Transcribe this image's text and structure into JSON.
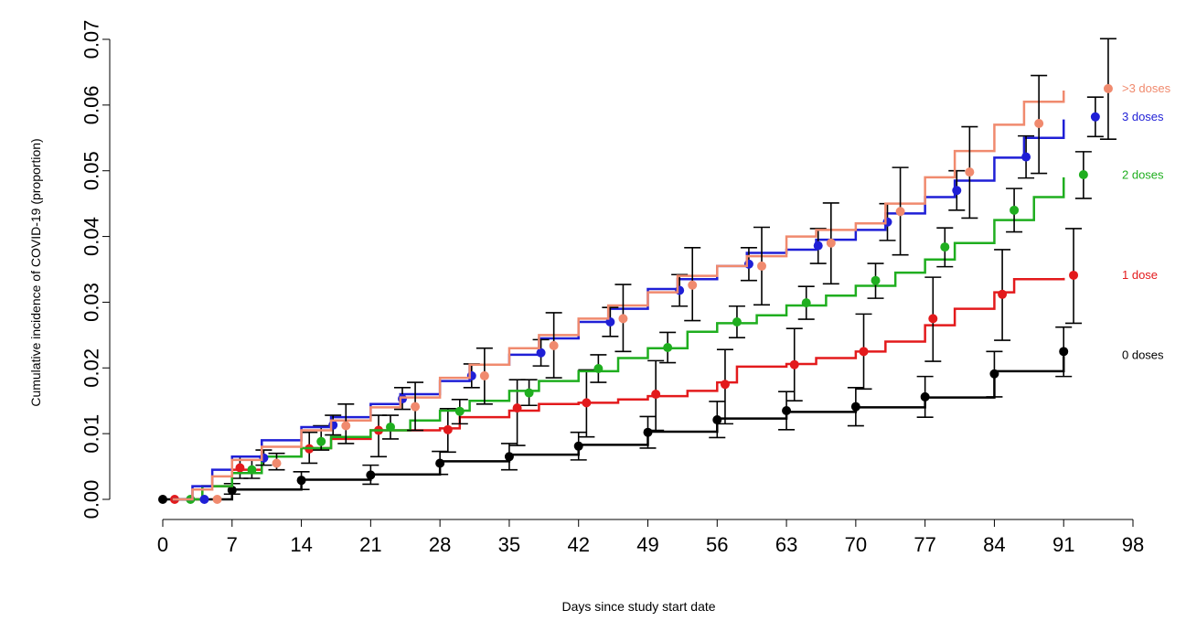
{
  "chart_data": {
    "type": "line",
    "title": "",
    "xlabel": "Days since study start date",
    "ylabel": "Cumulative incidence of COVID-19 (proportion)",
    "xlim": [
      0,
      98
    ],
    "ylim": [
      0,
      0.07
    ],
    "x_ticks": [
      0,
      7,
      14,
      21,
      28,
      35,
      42,
      49,
      56,
      63,
      70,
      77,
      84,
      91,
      98
    ],
    "x_tick_labels": [
      "0",
      "7",
      "14",
      "21",
      "28",
      "35",
      "42",
      "49",
      "56",
      "63",
      "70",
      "77",
      "84",
      "91",
      "98"
    ],
    "y_ticks": [
      0,
      0.01,
      0.02,
      0.03,
      0.04,
      0.05,
      0.06,
      0.07
    ],
    "y_tick_labels": [
      "0.00",
      "0.01",
      "0.02",
      "0.03",
      "0.04",
      "0.05",
      "0.06",
      "0.07"
    ],
    "grid": false,
    "series": [
      {
        "name": "0 doses",
        "color": "#000000",
        "curve_x": [
          0,
          7,
          14,
          21,
          28,
          35,
          42,
          49,
          56,
          63,
          70,
          72,
          77,
          84,
          91
        ],
        "curve_y": [
          0,
          0.0015,
          0.003,
          0.0038,
          0.0058,
          0.0068,
          0.0083,
          0.0103,
          0.0123,
          0.0133,
          0.014,
          0.014,
          0.0155,
          0.0195,
          0.0218
        ],
        "points": [
          {
            "x": 0,
            "y": 0,
            "lo": null,
            "hi": null
          },
          {
            "x": 7,
            "y": 0.0014,
            "lo": 0.0008,
            "hi": 0.0024
          },
          {
            "x": 14,
            "y": 0.0029,
            "lo": 0.0015,
            "hi": 0.0042
          },
          {
            "x": 21,
            "y": 0.0037,
            "lo": 0.0023,
            "hi": 0.0052
          },
          {
            "x": 28,
            "y": 0.0055,
            "lo": 0.0038,
            "hi": 0.0073
          },
          {
            "x": 35,
            "y": 0.0065,
            "lo": 0.0045,
            "hi": 0.0085
          },
          {
            "x": 42,
            "y": 0.0081,
            "lo": 0.006,
            "hi": 0.0102
          },
          {
            "x": 49,
            "y": 0.0102,
            "lo": 0.0078,
            "hi": 0.0126
          },
          {
            "x": 56,
            "y": 0.0121,
            "lo": 0.0094,
            "hi": 0.0149
          },
          {
            "x": 63,
            "y": 0.0135,
            "lo": 0.0106,
            "hi": 0.0164
          },
          {
            "x": 70,
            "y": 0.0141,
            "lo": 0.0112,
            "hi": 0.017
          },
          {
            "x": 77,
            "y": 0.0156,
            "lo": 0.0125,
            "hi": 0.0187
          },
          {
            "x": 84,
            "y": 0.0191,
            "lo": 0.0156,
            "hi": 0.0225
          },
          {
            "x": 91,
            "y": 0.0225,
            "lo": 0.0187,
            "hi": 0.0262
          }
        ]
      },
      {
        "name": "1 dose",
        "color": "#e31a1c",
        "curve_x": [
          1,
          4,
          7,
          10,
          14,
          17,
          21,
          25,
          28,
          30,
          35,
          38,
          42,
          46,
          49,
          53,
          56,
          58,
          63,
          66,
          70,
          73,
          77,
          80,
          84,
          86,
          91
        ],
        "curve_y": [
          0,
          0.002,
          0.0045,
          0.0065,
          0.0078,
          0.0092,
          0.0105,
          0.0105,
          0.0108,
          0.0125,
          0.0135,
          0.0145,
          0.0147,
          0.0152,
          0.0157,
          0.0165,
          0.0178,
          0.0202,
          0.0206,
          0.0215,
          0.0225,
          0.024,
          0.0265,
          0.029,
          0.0315,
          0.0335,
          0.0337
        ],
        "points": [
          {
            "x": 1.2,
            "y": 0,
            "lo": null,
            "hi": null
          },
          {
            "x": 7.8,
            "y": 0.0048,
            "lo": 0.0032,
            "hi": 0.0065
          },
          {
            "x": 14.8,
            "y": 0.0077,
            "lo": 0.0055,
            "hi": 0.0102
          },
          {
            "x": 21.8,
            "y": 0.0105,
            "lo": 0.0065,
            "hi": 0.0128
          },
          {
            "x": 28.8,
            "y": 0.0106,
            "lo": 0.0072,
            "hi": 0.0138
          },
          {
            "x": 35.8,
            "y": 0.0139,
            "lo": 0.0082,
            "hi": 0.0182
          },
          {
            "x": 42.8,
            "y": 0.0147,
            "lo": 0.0095,
            "hi": 0.0197
          },
          {
            "x": 49.8,
            "y": 0.016,
            "lo": 0.0105,
            "hi": 0.0211
          },
          {
            "x": 56.8,
            "y": 0.0175,
            "lo": 0.0115,
            "hi": 0.0228
          },
          {
            "x": 63.8,
            "y": 0.0205,
            "lo": 0.015,
            "hi": 0.026
          },
          {
            "x": 70.8,
            "y": 0.0225,
            "lo": 0.0168,
            "hi": 0.0282
          },
          {
            "x": 77.8,
            "y": 0.0275,
            "lo": 0.021,
            "hi": 0.0338
          },
          {
            "x": 84.8,
            "y": 0.0312,
            "lo": 0.0242,
            "hi": 0.038
          },
          {
            "x": 92,
            "y": 0.0341,
            "lo": 0.0268,
            "hi": 0.0412
          }
        ]
      },
      {
        "name": "2 doses",
        "color": "#1fae1f",
        "curve_x": [
          1,
          4,
          7,
          10,
          14,
          17,
          21,
          25,
          28,
          31,
          35,
          38,
          42,
          46,
          49,
          53,
          56,
          60,
          63,
          67,
          70,
          74,
          77,
          80,
          84,
          88,
          91
        ],
        "curve_y": [
          0,
          0.002,
          0.004,
          0.0065,
          0.0078,
          0.0095,
          0.0105,
          0.012,
          0.0135,
          0.015,
          0.0165,
          0.018,
          0.0195,
          0.0215,
          0.023,
          0.0255,
          0.0268,
          0.028,
          0.0295,
          0.031,
          0.0325,
          0.0345,
          0.0365,
          0.039,
          0.0425,
          0.046,
          0.049
        ],
        "points": [
          {
            "x": 2.8,
            "y": 0,
            "lo": null,
            "hi": null
          },
          {
            "x": 9,
            "y": 0.0045,
            "lo": 0.0032,
            "hi": 0.006
          },
          {
            "x": 16,
            "y": 0.0088,
            "lo": 0.0075,
            "hi": 0.0112
          },
          {
            "x": 23,
            "y": 0.011,
            "lo": 0.0092,
            "hi": 0.0128
          },
          {
            "x": 30,
            "y": 0.0134,
            "lo": 0.0115,
            "hi": 0.0152
          },
          {
            "x": 37,
            "y": 0.0162,
            "lo": 0.0143,
            "hi": 0.0182
          },
          {
            "x": 44,
            "y": 0.0199,
            "lo": 0.0178,
            "hi": 0.022
          },
          {
            "x": 51,
            "y": 0.0231,
            "lo": 0.0208,
            "hi": 0.0254
          },
          {
            "x": 58,
            "y": 0.027,
            "lo": 0.0246,
            "hi": 0.0294
          },
          {
            "x": 65,
            "y": 0.0299,
            "lo": 0.0274,
            "hi": 0.0324
          },
          {
            "x": 72,
            "y": 0.0333,
            "lo": 0.0306,
            "hi": 0.0359
          },
          {
            "x": 79,
            "y": 0.0384,
            "lo": 0.0354,
            "hi": 0.0413
          },
          {
            "x": 86,
            "y": 0.044,
            "lo": 0.0407,
            "hi": 0.0473
          },
          {
            "x": 93,
            "y": 0.0494,
            "lo": 0.0458,
            "hi": 0.0529
          }
        ]
      },
      {
        "name": "3 doses",
        "color": "#1f1fd6",
        "curve_x": [
          1,
          3,
          5,
          7,
          10,
          14,
          17,
          21,
          24,
          28,
          31,
          35,
          38,
          42,
          45,
          49,
          52,
          56,
          59,
          63,
          66,
          70,
          73,
          77,
          80,
          84,
          87,
          91
        ],
        "curve_y": [
          0,
          0.002,
          0.0045,
          0.0065,
          0.009,
          0.011,
          0.0125,
          0.0145,
          0.016,
          0.018,
          0.0205,
          0.022,
          0.0245,
          0.027,
          0.029,
          0.032,
          0.0335,
          0.0355,
          0.0375,
          0.038,
          0.0395,
          0.041,
          0.0435,
          0.046,
          0.0485,
          0.052,
          0.055,
          0.0578
        ],
        "points": [
          {
            "x": 4.2,
            "y": 0,
            "lo": null,
            "hi": null
          },
          {
            "x": 10.2,
            "y": 0.0063,
            "lo": 0.0052,
            "hi": 0.0075
          },
          {
            "x": 17.2,
            "y": 0.0113,
            "lo": 0.0098,
            "hi": 0.0128
          },
          {
            "x": 24.2,
            "y": 0.0153,
            "lo": 0.0137,
            "hi": 0.017
          },
          {
            "x": 31.2,
            "y": 0.0188,
            "lo": 0.017,
            "hi": 0.0206
          },
          {
            "x": 38.2,
            "y": 0.0223,
            "lo": 0.0203,
            "hi": 0.0243
          },
          {
            "x": 45.2,
            "y": 0.027,
            "lo": 0.0248,
            "hi": 0.0292
          },
          {
            "x": 52.2,
            "y": 0.0318,
            "lo": 0.0294,
            "hi": 0.0342
          },
          {
            "x": 59.2,
            "y": 0.0358,
            "lo": 0.0333,
            "hi": 0.0383
          },
          {
            "x": 66.2,
            "y": 0.0386,
            "lo": 0.0359,
            "hi": 0.0412
          },
          {
            "x": 73.2,
            "y": 0.0422,
            "lo": 0.0394,
            "hi": 0.045
          },
          {
            "x": 80.2,
            "y": 0.047,
            "lo": 0.044,
            "hi": 0.05
          },
          {
            "x": 87.2,
            "y": 0.0521,
            "lo": 0.0489,
            "hi": 0.0553
          },
          {
            "x": 94.2,
            "y": 0.0582,
            "lo": 0.0552,
            "hi": 0.0612
          }
        ]
      },
      {
        "name": ">3 doses",
        "color": "#f08a6e",
        "curve_x": [
          1,
          3,
          5,
          7,
          10,
          14,
          17,
          21,
          24,
          28,
          31,
          35,
          38,
          42,
          45,
          49,
          52,
          56,
          59,
          63,
          66,
          70,
          73,
          77,
          80,
          84,
          87,
          91
        ],
        "curve_y": [
          0,
          0.0015,
          0.0035,
          0.006,
          0.008,
          0.0105,
          0.012,
          0.014,
          0.0155,
          0.0185,
          0.0205,
          0.023,
          0.025,
          0.0275,
          0.0295,
          0.0315,
          0.034,
          0.0355,
          0.037,
          0.04,
          0.041,
          0.042,
          0.045,
          0.049,
          0.053,
          0.057,
          0.0605,
          0.0622
        ],
        "points": [
          {
            "x": 5.5,
            "y": 0,
            "lo": null,
            "hi": null
          },
          {
            "x": 11.5,
            "y": 0.0055,
            "lo": 0.0045,
            "hi": 0.007
          },
          {
            "x": 18.5,
            "y": 0.0112,
            "lo": 0.0085,
            "hi": 0.0145
          },
          {
            "x": 25.5,
            "y": 0.0141,
            "lo": 0.0105,
            "hi": 0.0178
          },
          {
            "x": 32.5,
            "y": 0.0188,
            "lo": 0.0145,
            "hi": 0.023
          },
          {
            "x": 39.5,
            "y": 0.0234,
            "lo": 0.0185,
            "hi": 0.0284
          },
          {
            "x": 46.5,
            "y": 0.0275,
            "lo": 0.0225,
            "hi": 0.0327
          },
          {
            "x": 53.5,
            "y": 0.0326,
            "lo": 0.0272,
            "hi": 0.0383
          },
          {
            "x": 60.5,
            "y": 0.0355,
            "lo": 0.0296,
            "hi": 0.0414
          },
          {
            "x": 67.5,
            "y": 0.039,
            "lo": 0.0328,
            "hi": 0.0451
          },
          {
            "x": 74.5,
            "y": 0.0438,
            "lo": 0.0372,
            "hi": 0.0505
          },
          {
            "x": 81.5,
            "y": 0.0498,
            "lo": 0.0428,
            "hi": 0.0567
          },
          {
            "x": 88.5,
            "y": 0.0572,
            "lo": 0.0496,
            "hi": 0.0645
          },
          {
            "x": 95.5,
            "y": 0.0625,
            "lo": 0.0548,
            "hi": 0.0701
          }
        ]
      }
    ],
    "legend": [
      {
        "label": ">3 doses",
        "color": "#f08a6e",
        "y": 0.0625
      },
      {
        "label": "3 doses",
        "color": "#1f1fd6",
        "y": 0.0582
      },
      {
        "label": "2 doses",
        "color": "#1fae1f",
        "y": 0.0493
      },
      {
        "label": "1 dose",
        "color": "#e31a1c",
        "y": 0.0341
      },
      {
        "label": "0 doses",
        "color": "#000000",
        "y": 0.0219
      }
    ]
  }
}
